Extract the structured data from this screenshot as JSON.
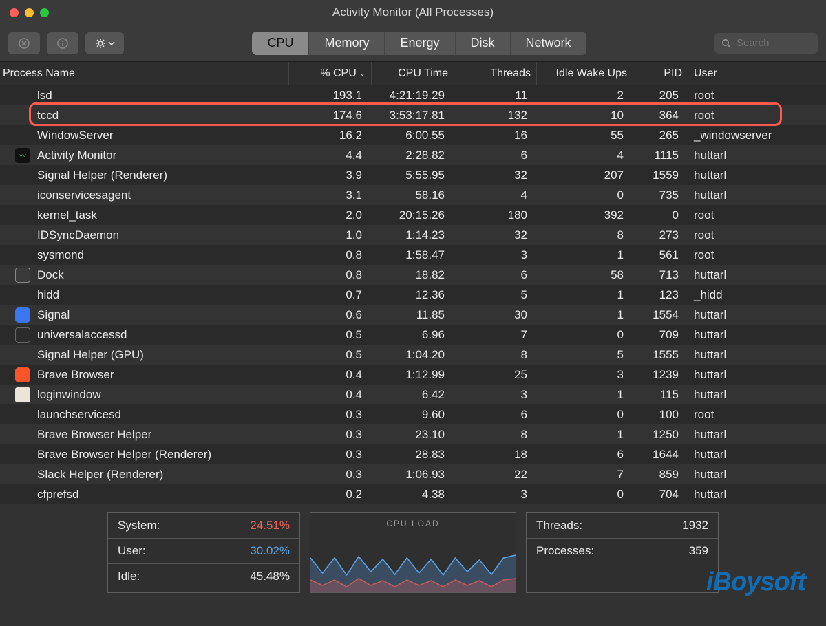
{
  "window": {
    "title": "Activity Monitor (All Processes)"
  },
  "toolbar": {
    "tabs": [
      "CPU",
      "Memory",
      "Energy",
      "Disk",
      "Network"
    ],
    "active_tab": 0,
    "search_placeholder": "Search"
  },
  "columns": {
    "process_name": "Process Name",
    "cpu_pct": "% CPU",
    "cpu_time": "CPU Time",
    "threads": "Threads",
    "idle_wakeups": "Idle Wake Ups",
    "pid": "PID",
    "user": "User",
    "sort_indicator": "⌄"
  },
  "highlight": {
    "row_index": 1,
    "color": "#ff5a4d"
  },
  "processes": [
    {
      "name": "lsd",
      "cpu": "193.1",
      "time": "4:21:19.29",
      "threads": "11",
      "wake": "2",
      "pid": "205",
      "user": "root"
    },
    {
      "name": "tccd",
      "cpu": "174.6",
      "time": "3:53:17.81",
      "threads": "132",
      "wake": "10",
      "pid": "364",
      "user": "root"
    },
    {
      "name": "WindowServer",
      "cpu": "16.2",
      "time": "6:00.55",
      "threads": "16",
      "wake": "55",
      "pid": "265",
      "user": "_windowserver"
    },
    {
      "name": "Activity Monitor",
      "cpu": "4.4",
      "time": "2:28.82",
      "threads": "6",
      "wake": "4",
      "pid": "1115",
      "user": "huttarl",
      "icon": "am"
    },
    {
      "name": "Signal Helper (Renderer)",
      "cpu": "3.9",
      "time": "5:55.95",
      "threads": "32",
      "wake": "207",
      "pid": "1559",
      "user": "huttarl"
    },
    {
      "name": "iconservicesagent",
      "cpu": "3.1",
      "time": "58.16",
      "threads": "4",
      "wake": "0",
      "pid": "735",
      "user": "huttarl"
    },
    {
      "name": "kernel_task",
      "cpu": "2.0",
      "time": "20:15.26",
      "threads": "180",
      "wake": "392",
      "pid": "0",
      "user": "root"
    },
    {
      "name": "IDSyncDaemon",
      "cpu": "1.0",
      "time": "1:14.23",
      "threads": "32",
      "wake": "8",
      "pid": "273",
      "user": "root"
    },
    {
      "name": "sysmond",
      "cpu": "0.8",
      "time": "1:58.47",
      "threads": "3",
      "wake": "1",
      "pid": "561",
      "user": "root"
    },
    {
      "name": "Dock",
      "cpu": "0.8",
      "time": "18.82",
      "threads": "6",
      "wake": "58",
      "pid": "713",
      "user": "huttarl",
      "icon": "dock"
    },
    {
      "name": "hidd",
      "cpu": "0.7",
      "time": "12.36",
      "threads": "5",
      "wake": "1",
      "pid": "123",
      "user": "_hidd"
    },
    {
      "name": "Signal",
      "cpu": "0.6",
      "time": "11.85",
      "threads": "30",
      "wake": "1",
      "pid": "1554",
      "user": "huttarl",
      "icon": "signal"
    },
    {
      "name": "universalaccessd",
      "cpu": "0.5",
      "time": "6.96",
      "threads": "7",
      "wake": "0",
      "pid": "709",
      "user": "huttarl",
      "icon": "term"
    },
    {
      "name": "Signal Helper (GPU)",
      "cpu": "0.5",
      "time": "1:04.20",
      "threads": "8",
      "wake": "5",
      "pid": "1555",
      "user": "huttarl"
    },
    {
      "name": "Brave Browser",
      "cpu": "0.4",
      "time": "1:12.99",
      "threads": "25",
      "wake": "3",
      "pid": "1239",
      "user": "huttarl",
      "icon": "brave"
    },
    {
      "name": "loginwindow",
      "cpu": "0.4",
      "time": "6.42",
      "threads": "3",
      "wake": "1",
      "pid": "115",
      "user": "huttarl",
      "icon": "login"
    },
    {
      "name": "launchservicesd",
      "cpu": "0.3",
      "time": "9.60",
      "threads": "6",
      "wake": "0",
      "pid": "100",
      "user": "root"
    },
    {
      "name": "Brave Browser Helper",
      "cpu": "0.3",
      "time": "23.10",
      "threads": "8",
      "wake": "1",
      "pid": "1250",
      "user": "huttarl"
    },
    {
      "name": "Brave Browser Helper (Renderer)",
      "cpu": "0.3",
      "time": "28.83",
      "threads": "18",
      "wake": "6",
      "pid": "1644",
      "user": "huttarl"
    },
    {
      "name": "Slack Helper (Renderer)",
      "cpu": "0.3",
      "time": "1:06.93",
      "threads": "22",
      "wake": "7",
      "pid": "859",
      "user": "huttarl"
    },
    {
      "name": "cfprefsd",
      "cpu": "0.2",
      "time": "4.38",
      "threads": "3",
      "wake": "0",
      "pid": "704",
      "user": "huttarl"
    }
  ],
  "footer": {
    "system_label": "System:",
    "system_value": "24.51%",
    "system_color": "#e8635b",
    "user_label": "User:",
    "user_value": "30.02%",
    "user_color": "#5aa3e8",
    "idle_label": "Idle:",
    "idle_value": "45.48%",
    "cpu_load_label": "CPU LOAD",
    "threads_label": "Threads:",
    "threads_value": "1932",
    "processes_label": "Processes:",
    "processes_value": "359",
    "graph": {
      "blue_color": "#5aa3e8",
      "red_color": "#c75a5a",
      "blue_fill": "#5aa3e844",
      "red_fill": "#c75a5a55",
      "blue_points": [
        40,
        62,
        40,
        65,
        38,
        60,
        42,
        64,
        40,
        62,
        42,
        65,
        40,
        60,
        43,
        64,
        40,
        36
      ],
      "red_points": [
        72,
        80,
        72,
        82,
        70,
        80,
        73,
        82,
        72,
        80,
        73,
        82,
        72,
        80,
        73,
        82,
        72,
        70
      ]
    }
  },
  "watermark": "iBoysoft",
  "row_colors": {
    "even": "#2a2a2a",
    "odd": "#333333"
  },
  "icons": {
    "am": {
      "bg": "#111",
      "fg": "#5bd66a"
    },
    "dock": {
      "bg": "#3a3a3a",
      "border": "#888"
    },
    "signal": {
      "bg": "#3a76f0"
    },
    "term": {
      "bg": "#2b2b2b",
      "border": "#666"
    },
    "brave": {
      "bg": "#fb542b"
    },
    "login": {
      "bg": "#ece4d8"
    }
  }
}
